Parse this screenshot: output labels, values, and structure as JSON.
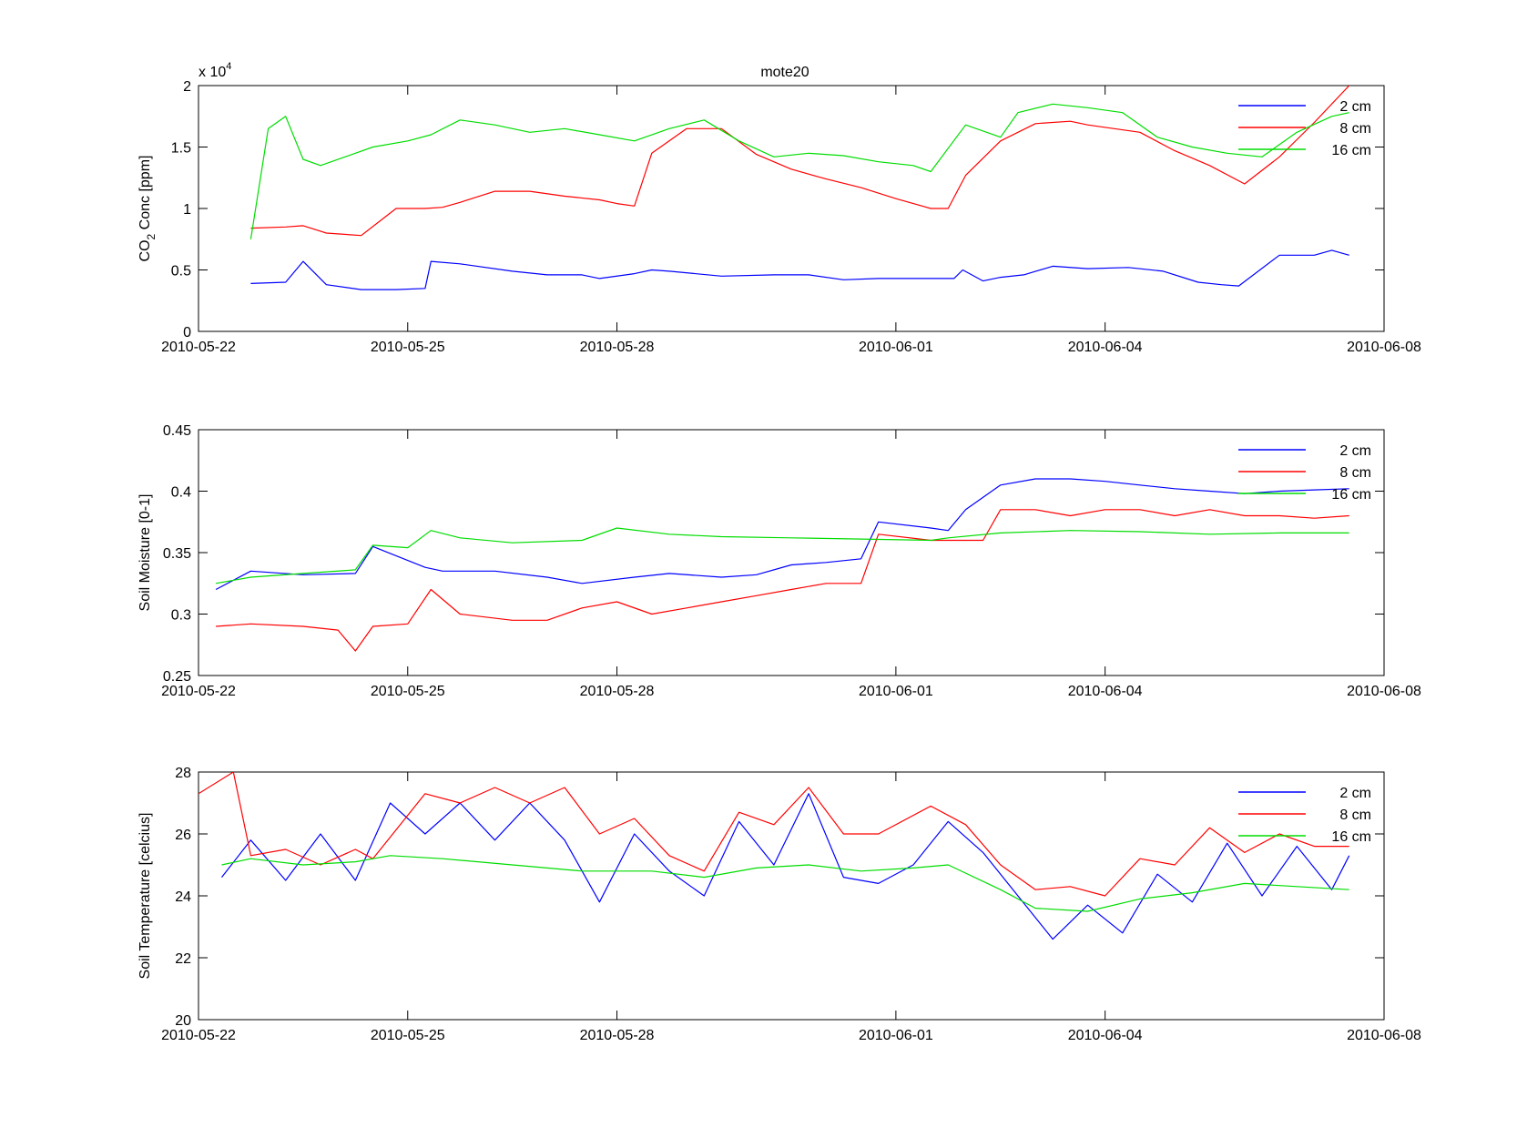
{
  "figure_title": "mote20",
  "colors": {
    "2 cm": "#0000ff",
    "8 cm": "#ff0000",
    "16 cm": "#00dd00"
  },
  "chart_data": [
    {
      "type": "line",
      "title": "mote20",
      "ylabel_main": "CO",
      "ylabel_sub": "2",
      "ylabel_rest": " Conc [ppm]",
      "exponent_label": "x 10",
      "exponent_power": "4",
      "xlim": [
        "2010-05-22",
        "2010-06-08"
      ],
      "xticks": [
        "2010-05-22",
        "2010-05-25",
        "2010-05-28",
        "2010-06-01",
        "2010-06-04",
        "2010-06-08"
      ],
      "ylim": [
        0,
        2
      ],
      "yticks": [
        "0",
        "0.5",
        "1",
        "1.5",
        "2"
      ],
      "legend_position": "top-right",
      "series": [
        {
          "name": "2 cm",
          "x": [
            "2010-05-22T18:00",
            "2010-05-23T06:00",
            "2010-05-23T12:00",
            "2010-05-23T20:00",
            "2010-05-24T08:00",
            "2010-05-24T20:00",
            "2010-05-25T06:00",
            "2010-05-25T08:00",
            "2010-05-25T18:00",
            "2010-05-26T12:00",
            "2010-05-27T00:00",
            "2010-05-27T12:00",
            "2010-05-27T18:00",
            "2010-05-28T06:00",
            "2010-05-28T12:00",
            "2010-05-28T18:00",
            "2010-05-29T12:00",
            "2010-05-30T06:00",
            "2010-05-30T18:00",
            "2010-05-31T06:00",
            "2010-05-31T18:00",
            "2010-06-01T06:00",
            "2010-06-01T20:00",
            "2010-06-01T23:00",
            "2010-06-02T06:00",
            "2010-06-02T12:00",
            "2010-06-02T20:00",
            "2010-06-03T06:00",
            "2010-06-03T18:00",
            "2010-06-04T08:00",
            "2010-06-04T20:00",
            "2010-06-05T08:00",
            "2010-06-05T16:00",
            "2010-06-05T22:00",
            "2010-06-06T12:00",
            "2010-06-07T00:00",
            "2010-06-07T06:00",
            "2010-06-07T12:00"
          ],
          "values": [
            0.39,
            0.4,
            0.57,
            0.38,
            0.34,
            0.34,
            0.35,
            0.57,
            0.55,
            0.49,
            0.46,
            0.46,
            0.43,
            0.47,
            0.5,
            0.49,
            0.45,
            0.46,
            0.46,
            0.42,
            0.43,
            0.43,
            0.43,
            0.5,
            0.41,
            0.44,
            0.46,
            0.53,
            0.51,
            0.52,
            0.49,
            0.4,
            0.38,
            0.37,
            0.62,
            0.62,
            0.66,
            0.62
          ]
        },
        {
          "name": "8 cm",
          "x": [
            "2010-05-22T18:00",
            "2010-05-23T06:00",
            "2010-05-23T12:00",
            "2010-05-23T20:00",
            "2010-05-24T08:00",
            "2010-05-24T20:00",
            "2010-05-25T06:00",
            "2010-05-25T12:00",
            "2010-05-25T18:00",
            "2010-05-26T06:00",
            "2010-05-26T18:00",
            "2010-05-27T06:00",
            "2010-05-27T18:00",
            "2010-05-28T00:00",
            "2010-05-28T06:00",
            "2010-05-28T12:00",
            "2010-05-29T00:00",
            "2010-05-29T12:00",
            "2010-05-30T00:00",
            "2010-05-30T12:00",
            "2010-05-31T00:00",
            "2010-05-31T12:00",
            "2010-06-01T00:00",
            "2010-06-01T12:00",
            "2010-06-01T18:00",
            "2010-06-02T00:00",
            "2010-06-02T12:00",
            "2010-06-03T00:00",
            "2010-06-03T12:00",
            "2010-06-03T18:00",
            "2010-06-04T12:00",
            "2010-06-05T00:00",
            "2010-06-05T12:00",
            "2010-06-06T00:00",
            "2010-06-06T12:00",
            "2010-06-07T00:00",
            "2010-06-07T12:00"
          ],
          "values": [
            0.84,
            0.85,
            0.86,
            0.8,
            0.78,
            1.0,
            1.0,
            1.01,
            1.05,
            1.14,
            1.14,
            1.1,
            1.07,
            1.04,
            1.02,
            1.45,
            1.65,
            1.65,
            1.44,
            1.32,
            1.24,
            1.17,
            1.08,
            1.0,
            1.0,
            1.27,
            1.55,
            1.69,
            1.71,
            1.68,
            1.62,
            1.47,
            1.35,
            1.2,
            1.42,
            1.7,
            2.0
          ]
        },
        {
          "name": "16 cm",
          "x": [
            "2010-05-22T18:00",
            "2010-05-23T00:00",
            "2010-05-23T06:00",
            "2010-05-23T12:00",
            "2010-05-23T18:00",
            "2010-05-24T06:00",
            "2010-05-24T12:00",
            "2010-05-25T00:00",
            "2010-05-25T08:00",
            "2010-05-25T18:00",
            "2010-05-26T06:00",
            "2010-05-26T18:00",
            "2010-05-27T06:00",
            "2010-05-27T18:00",
            "2010-05-28T06:00",
            "2010-05-28T18:00",
            "2010-05-29T06:00",
            "2010-05-29T18:00",
            "2010-05-30T06:00",
            "2010-05-30T18:00",
            "2010-05-31T06:00",
            "2010-05-31T18:00",
            "2010-06-01T06:00",
            "2010-06-01T12:00",
            "2010-06-02T00:00",
            "2010-06-02T12:00",
            "2010-06-02T18:00",
            "2010-06-03T06:00",
            "2010-06-03T18:00",
            "2010-06-04T06:00",
            "2010-06-04T18:00",
            "2010-06-05T06:00",
            "2010-06-05T18:00",
            "2010-06-06T06:00",
            "2010-06-06T18:00",
            "2010-06-07T06:00",
            "2010-06-07T12:00"
          ],
          "values": [
            0.75,
            1.65,
            1.75,
            1.4,
            1.35,
            1.45,
            1.5,
            1.55,
            1.6,
            1.72,
            1.68,
            1.62,
            1.65,
            1.6,
            1.55,
            1.65,
            1.72,
            1.55,
            1.42,
            1.45,
            1.43,
            1.38,
            1.35,
            1.3,
            1.68,
            1.58,
            1.78,
            1.85,
            1.82,
            1.78,
            1.58,
            1.5,
            1.45,
            1.42,
            1.62,
            1.75,
            1.78
          ]
        }
      ]
    },
    {
      "type": "line",
      "ylabel": "Soil Moisture [0-1]",
      "xlim": [
        "2010-05-22",
        "2010-06-08"
      ],
      "xticks": [
        "2010-05-22",
        "2010-05-25",
        "2010-05-28",
        "2010-06-01",
        "2010-06-04",
        "2010-06-08"
      ],
      "ylim": [
        0.25,
        0.45
      ],
      "yticks": [
        "0.25",
        "0.3",
        "0.35",
        "0.4",
        "0.45"
      ],
      "legend_position": "top-right",
      "series": [
        {
          "name": "2 cm",
          "x": [
            "2010-05-22T06:00",
            "2010-05-22T18:00",
            "2010-05-23T12:00",
            "2010-05-24T06:00",
            "2010-05-24T12:00",
            "2010-05-25T06:00",
            "2010-05-25T12:00",
            "2010-05-26T06:00",
            "2010-05-27T00:00",
            "2010-05-27T12:00",
            "2010-05-28T06:00",
            "2010-05-28T18:00",
            "2010-05-29T12:00",
            "2010-05-30T00:00",
            "2010-05-30T12:00",
            "2010-05-31T00:00",
            "2010-05-31T12:00",
            "2010-05-31T18:00",
            "2010-06-01T12:00",
            "2010-06-01T18:00",
            "2010-06-02T00:00",
            "2010-06-02T12:00",
            "2010-06-03T00:00",
            "2010-06-03T12:00",
            "2010-06-04T00:00",
            "2010-06-04T12:00",
            "2010-06-05T00:00",
            "2010-06-05T12:00",
            "2010-06-06T00:00",
            "2010-06-06T12:00",
            "2010-06-07T00:00",
            "2010-06-07T12:00"
          ],
          "values": [
            0.32,
            0.335,
            0.332,
            0.333,
            0.355,
            0.338,
            0.335,
            0.335,
            0.33,
            0.325,
            0.33,
            0.333,
            0.33,
            0.332,
            0.34,
            0.342,
            0.345,
            0.375,
            0.37,
            0.368,
            0.385,
            0.405,
            0.41,
            0.41,
            0.408,
            0.405,
            0.402,
            0.4,
            0.398,
            0.4,
            0.401,
            0.402
          ]
        },
        {
          "name": "8 cm",
          "x": [
            "2010-05-22T06:00",
            "2010-05-22T18:00",
            "2010-05-23T12:00",
            "2010-05-24T00:00",
            "2010-05-24T06:00",
            "2010-05-24T12:00",
            "2010-05-25T00:00",
            "2010-05-25T08:00",
            "2010-05-25T18:00",
            "2010-05-26T12:00",
            "2010-05-27T00:00",
            "2010-05-27T12:00",
            "2010-05-28T00:00",
            "2010-05-28T12:00",
            "2010-05-29T00:00",
            "2010-05-29T12:00",
            "2010-05-30T00:00",
            "2010-05-30T12:00",
            "2010-05-31T00:00",
            "2010-05-31T12:00",
            "2010-05-31T18:00",
            "2010-06-01T12:00",
            "2010-06-01T18:00",
            "2010-06-02T06:00",
            "2010-06-02T12:00",
            "2010-06-03T00:00",
            "2010-06-03T12:00",
            "2010-06-04T00:00",
            "2010-06-04T12:00",
            "2010-06-05T00:00",
            "2010-06-05T12:00",
            "2010-06-06T00:00",
            "2010-06-06T12:00",
            "2010-06-07T00:00",
            "2010-06-07T12:00"
          ],
          "values": [
            0.29,
            0.292,
            0.29,
            0.287,
            0.27,
            0.29,
            0.292,
            0.32,
            0.3,
            0.295,
            0.295,
            0.305,
            0.31,
            0.3,
            0.305,
            0.31,
            0.315,
            0.32,
            0.325,
            0.325,
            0.365,
            0.36,
            0.36,
            0.36,
            0.385,
            0.385,
            0.38,
            0.385,
            0.385,
            0.38,
            0.385,
            0.38,
            0.38,
            0.378,
            0.38
          ]
        },
        {
          "name": "16 cm",
          "x": [
            "2010-05-22T06:00",
            "2010-05-22T18:00",
            "2010-05-23T12:00",
            "2010-05-24T06:00",
            "2010-05-24T12:00",
            "2010-05-25T00:00",
            "2010-05-25T08:00",
            "2010-05-25T18:00",
            "2010-05-26T12:00",
            "2010-05-27T12:00",
            "2010-05-28T00:00",
            "2010-05-28T18:00",
            "2010-05-29T12:00",
            "2010-05-30T12:00",
            "2010-05-31T12:00",
            "2010-06-01T12:00",
            "2010-06-01T18:00",
            "2010-06-02T12:00",
            "2010-06-03T12:00",
            "2010-06-04T12:00",
            "2010-06-05T12:00",
            "2010-06-06T12:00",
            "2010-06-07T12:00"
          ],
          "values": [
            0.325,
            0.33,
            0.333,
            0.336,
            0.356,
            0.354,
            0.368,
            0.362,
            0.358,
            0.36,
            0.37,
            0.365,
            0.363,
            0.362,
            0.361,
            0.36,
            0.362,
            0.366,
            0.368,
            0.367,
            0.365,
            0.366,
            0.366
          ]
        }
      ]
    },
    {
      "type": "line",
      "ylabel": "Soil Temperature [celcius]",
      "xlim": [
        "2010-05-22",
        "2010-06-08"
      ],
      "xticks": [
        "2010-05-22",
        "2010-05-25",
        "2010-05-28",
        "2010-06-01",
        "2010-06-04",
        "2010-06-08"
      ],
      "ylim": [
        20,
        28
      ],
      "yticks": [
        "20",
        "22",
        "24",
        "26",
        "28"
      ],
      "legend_position": "top-right",
      "series": [
        {
          "name": "2 cm",
          "x": [
            "2010-05-22T08:00",
            "2010-05-22T18:00",
            "2010-05-23T06:00",
            "2010-05-23T18:00",
            "2010-05-24T06:00",
            "2010-05-24T18:00",
            "2010-05-25T06:00",
            "2010-05-25T18:00",
            "2010-05-26T06:00",
            "2010-05-26T18:00",
            "2010-05-27T06:00",
            "2010-05-27T18:00",
            "2010-05-28T06:00",
            "2010-05-28T18:00",
            "2010-05-29T06:00",
            "2010-05-29T18:00",
            "2010-05-30T06:00",
            "2010-05-30T18:00",
            "2010-05-31T06:00",
            "2010-05-31T18:00",
            "2010-06-01T06:00",
            "2010-06-01T18:00",
            "2010-06-02T06:00",
            "2010-06-02T18:00",
            "2010-06-03T06:00",
            "2010-06-03T18:00",
            "2010-06-04T06:00",
            "2010-06-04T18:00",
            "2010-06-05T06:00",
            "2010-06-05T18:00",
            "2010-06-06T06:00",
            "2010-06-06T18:00",
            "2010-06-07T06:00",
            "2010-06-07T12:00"
          ],
          "values": [
            24.6,
            25.8,
            24.5,
            26.0,
            24.5,
            27.0,
            26.0,
            27.0,
            25.8,
            27.0,
            25.8,
            23.8,
            26.0,
            24.8,
            24.0,
            26.4,
            25.0,
            27.3,
            24.6,
            24.4,
            25.0,
            26.4,
            25.4,
            24.0,
            22.6,
            23.7,
            22.8,
            24.7,
            23.8,
            25.7,
            24.0,
            25.6,
            24.2,
            25.3
          ]
        },
        {
          "name": "8 cm",
          "x": [
            "2010-05-22T00:00",
            "2010-05-22T12:00",
            "2010-05-22T18:00",
            "2010-05-23T06:00",
            "2010-05-23T18:00",
            "2010-05-24T06:00",
            "2010-05-24T12:00",
            "2010-05-25T06:00",
            "2010-05-25T18:00",
            "2010-05-26T06:00",
            "2010-05-26T18:00",
            "2010-05-27T06:00",
            "2010-05-27T18:00",
            "2010-05-28T06:00",
            "2010-05-28T18:00",
            "2010-05-29T06:00",
            "2010-05-29T18:00",
            "2010-05-30T06:00",
            "2010-05-30T18:00",
            "2010-05-31T06:00",
            "2010-05-31T18:00",
            "2010-06-01T12:00",
            "2010-06-02T00:00",
            "2010-06-02T12:00",
            "2010-06-03T00:00",
            "2010-06-03T12:00",
            "2010-06-04T00:00",
            "2010-06-04T12:00",
            "2010-06-05T00:00",
            "2010-06-05T12:00",
            "2010-06-06T00:00",
            "2010-06-06T12:00",
            "2010-06-07T00:00",
            "2010-06-07T12:00"
          ],
          "values": [
            27.3,
            28.0,
            25.3,
            25.5,
            25.0,
            25.5,
            25.2,
            27.3,
            27.0,
            27.5,
            27.0,
            27.5,
            26.0,
            26.5,
            25.3,
            24.8,
            26.7,
            26.3,
            27.5,
            26.0,
            26.0,
            26.9,
            26.3,
            25.0,
            24.2,
            24.3,
            24.0,
            25.2,
            25.0,
            26.2,
            25.4,
            26.0,
            25.6,
            25.6
          ]
        },
        {
          "name": "16 cm",
          "x": [
            "2010-05-22T08:00",
            "2010-05-22T18:00",
            "2010-05-23T12:00",
            "2010-05-24T06:00",
            "2010-05-24T18:00",
            "2010-05-25T12:00",
            "2010-05-26T12:00",
            "2010-05-27T12:00",
            "2010-05-28T12:00",
            "2010-05-29T06:00",
            "2010-05-30T00:00",
            "2010-05-30T18:00",
            "2010-05-31T12:00",
            "2010-06-01T06:00",
            "2010-06-01T18:00",
            "2010-06-02T12:00",
            "2010-06-03T00:00",
            "2010-06-03T18:00",
            "2010-06-04T12:00",
            "2010-06-05T06:00",
            "2010-06-06T00:00",
            "2010-06-06T18:00",
            "2010-06-07T12:00"
          ],
          "values": [
            25.0,
            25.2,
            25.0,
            25.1,
            25.3,
            25.2,
            25.0,
            24.8,
            24.8,
            24.6,
            24.9,
            25.0,
            24.8,
            24.9,
            25.0,
            24.2,
            23.6,
            23.5,
            23.9,
            24.1,
            24.4,
            24.3,
            24.2
          ]
        }
      ]
    }
  ]
}
